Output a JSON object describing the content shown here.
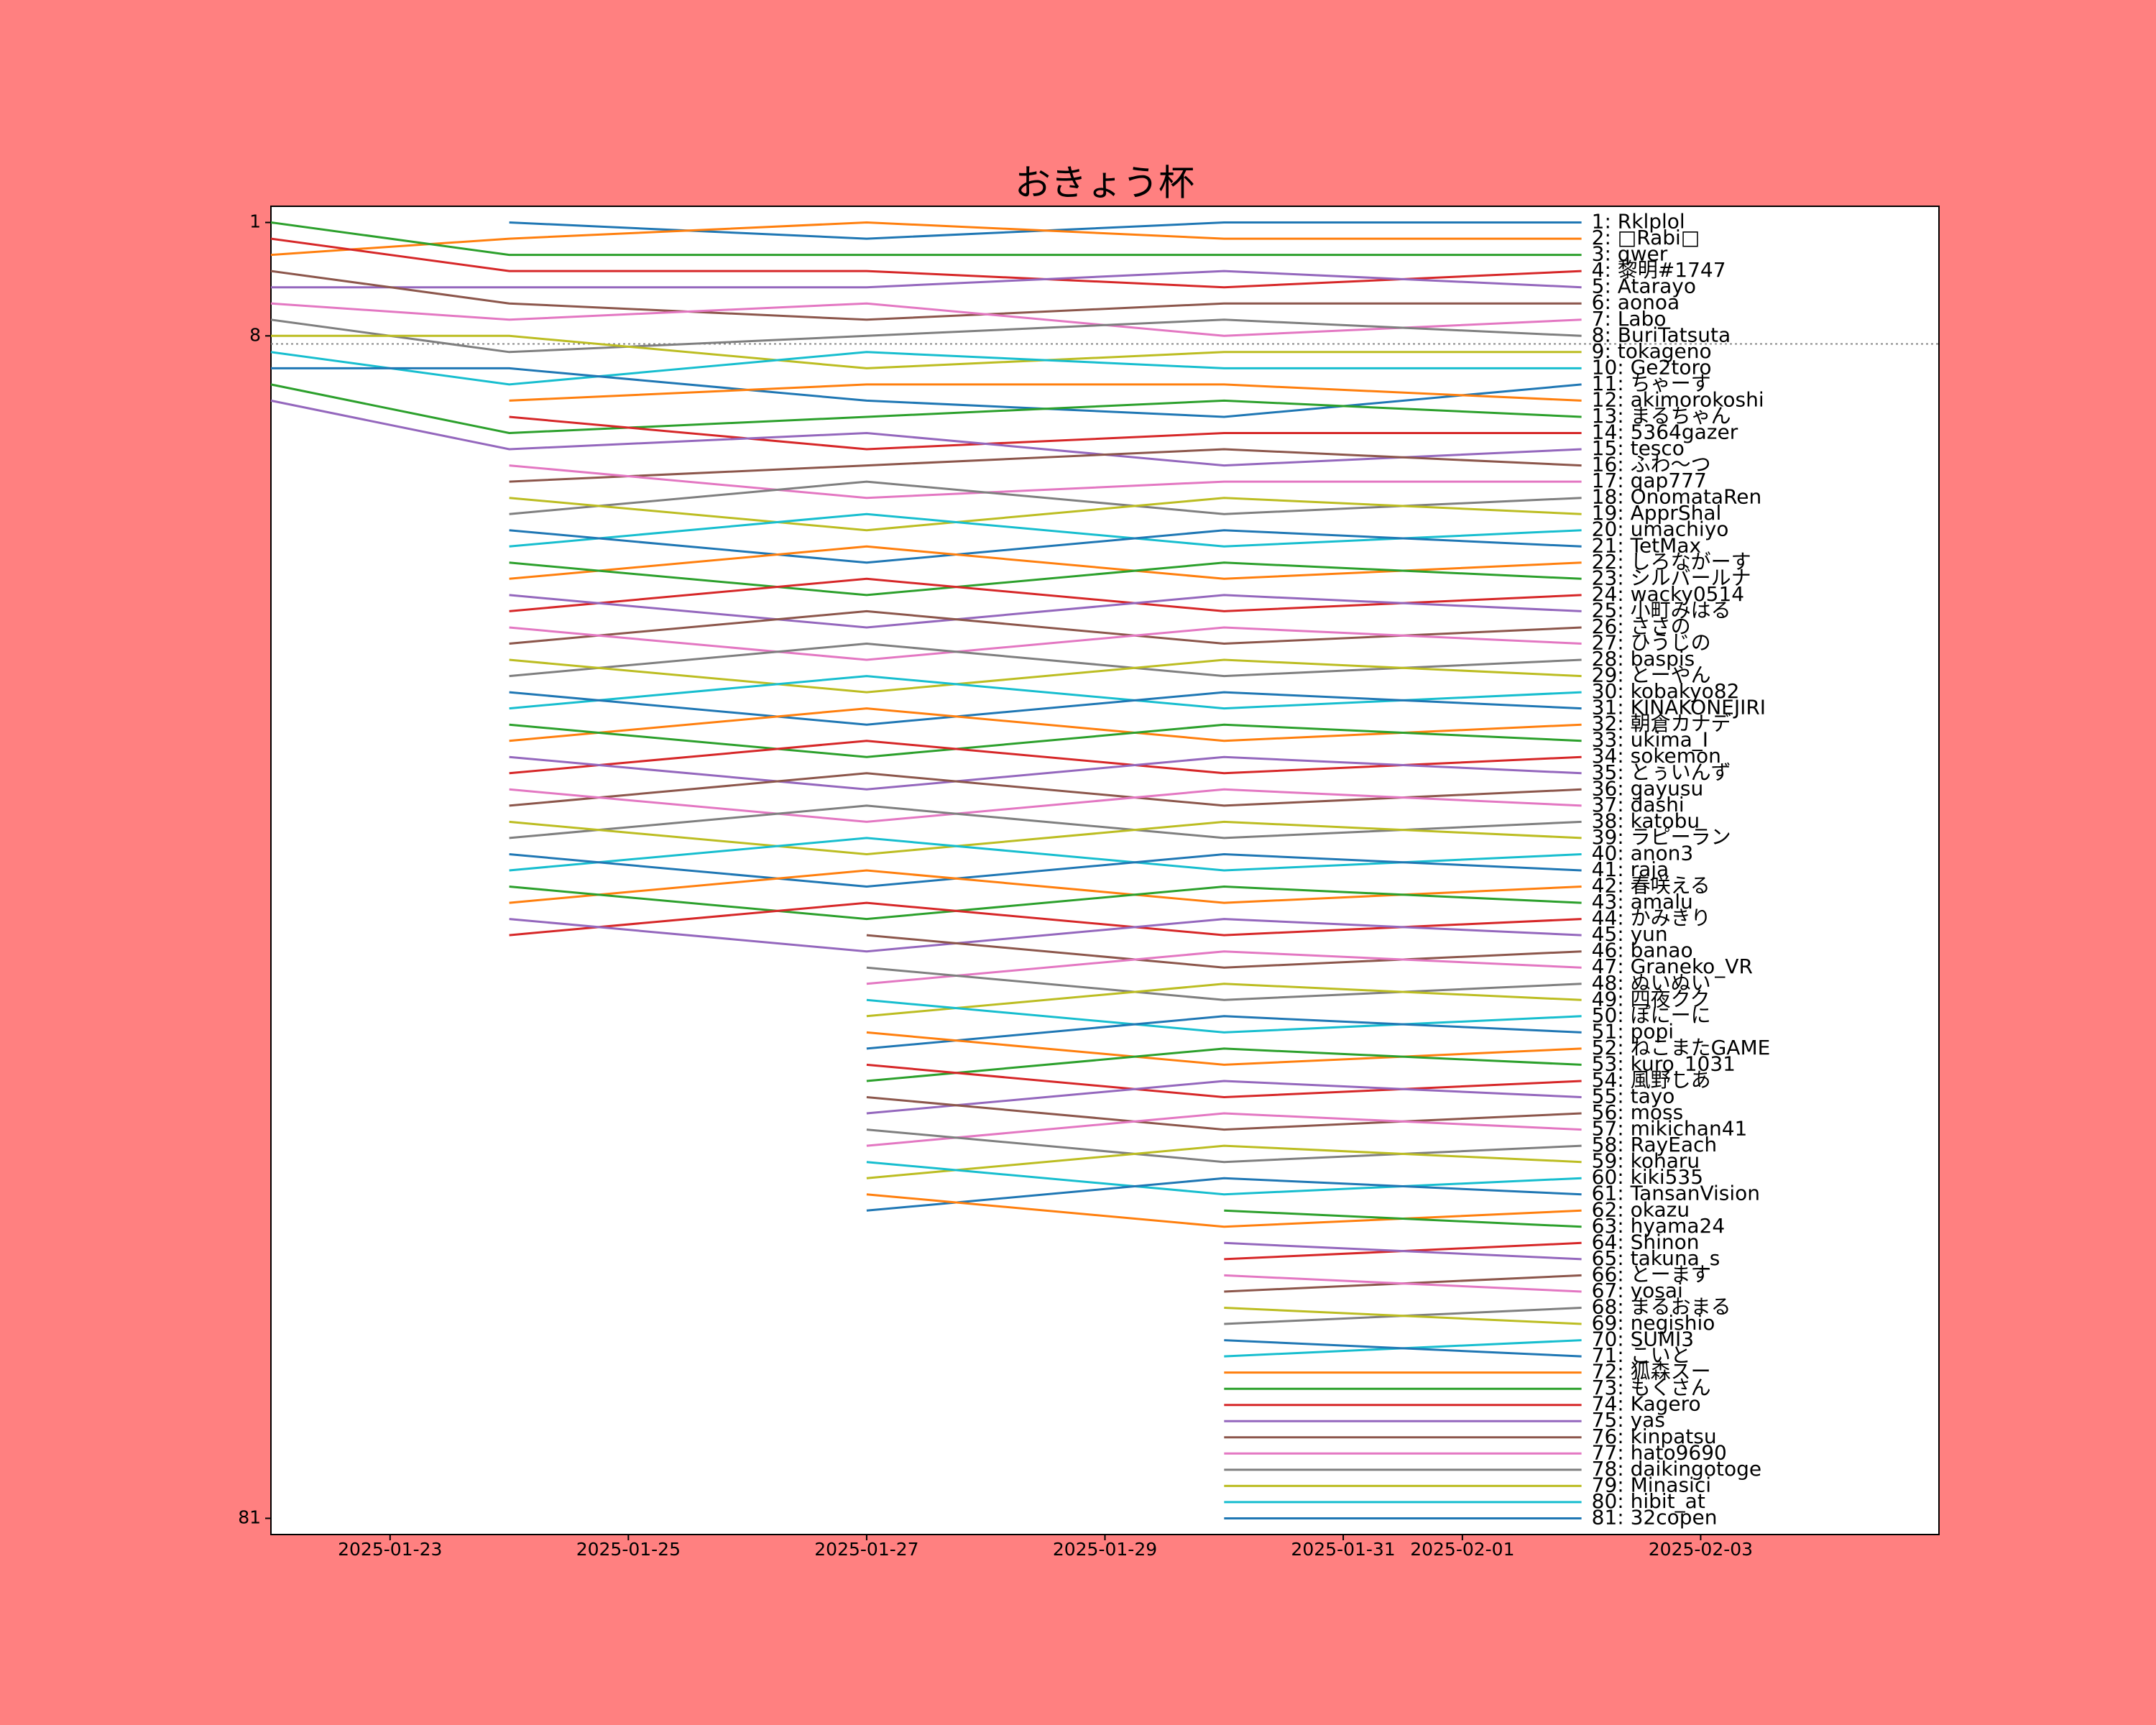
{
  "chart_data": {
    "type": "line",
    "title": "おきょう杯",
    "x": [
      "2025-01-22",
      "2025-01-24",
      "2025-01-27",
      "2025-01-30",
      "2025-02-02"
    ],
    "xlim": [
      "2025-01-22",
      "2025-02-05"
    ],
    "xticks": [
      "2025-01-23",
      "2025-01-25",
      "2025-01-27",
      "2025-01-29",
      "2025-01-31",
      "2025-02-01",
      "2025-02-03"
    ],
    "ylim": [
      82,
      0
    ],
    "yticks": [
      1,
      8,
      81
    ],
    "threshold": 8.5,
    "series": [
      {
        "name": "1: Rklplol",
        "color": "#1f77b4",
        "values": [
          null,
          1,
          2,
          1,
          1
        ]
      },
      {
        "name": "2: □Rabi□",
        "color": "#ff7f0e",
        "values": [
          3,
          2,
          1,
          2,
          2
        ]
      },
      {
        "name": "3: qwer",
        "color": "#2ca02c",
        "values": [
          1,
          3,
          3,
          3,
          3
        ]
      },
      {
        "name": "4: 黎明#1747",
        "color": "#d62728",
        "values": [
          2,
          4,
          4,
          5,
          4
        ]
      },
      {
        "name": "5: Atarayo",
        "color": "#9467bd",
        "values": [
          5,
          5,
          5,
          4,
          5
        ]
      },
      {
        "name": "6: aonoa",
        "color": "#8c564b",
        "values": [
          4,
          6,
          7,
          6,
          6
        ]
      },
      {
        "name": "7: Labo",
        "color": "#e377c2",
        "values": [
          6,
          7,
          6,
          8,
          7
        ]
      },
      {
        "name": "8: BuriTatsuta",
        "color": "#7f7f7f",
        "values": [
          7,
          9,
          8,
          7,
          8
        ]
      },
      {
        "name": "9: tokageno",
        "color": "#bcbd22",
        "values": [
          8,
          8,
          10,
          9,
          9
        ]
      },
      {
        "name": "10: Ge2toro",
        "color": "#17becf",
        "values": [
          9,
          11,
          9,
          10,
          10
        ]
      },
      {
        "name": "11: ちゃーす",
        "color": "#1f77b4",
        "values": [
          10,
          10,
          12,
          13,
          11
        ]
      },
      {
        "name": "12: akimorokoshi",
        "color": "#ff7f0e",
        "values": [
          null,
          12,
          11,
          11,
          12
        ]
      },
      {
        "name": "13: まるちゃん",
        "color": "#2ca02c",
        "values": [
          11,
          14,
          13,
          12,
          13
        ]
      },
      {
        "name": "14: 5364gazer",
        "color": "#d62728",
        "values": [
          null,
          13,
          15,
          14,
          14
        ]
      },
      {
        "name": "15: tesco",
        "color": "#9467bd",
        "values": [
          12,
          15,
          14,
          16,
          15
        ]
      },
      {
        "name": "16: ふわ〜つ",
        "color": "#8c564b",
        "values": [
          null,
          17,
          16,
          15,
          16
        ]
      },
      {
        "name": "17: qap777",
        "color": "#e377c2",
        "values": [
          null,
          16,
          18,
          17,
          17
        ]
      },
      {
        "name": "18: OnomataRen",
        "color": "#7f7f7f",
        "values": [
          null,
          19,
          17,
          19,
          18
        ]
      },
      {
        "name": "19: ApprShal",
        "color": "#bcbd22",
        "values": [
          null,
          18,
          20,
          18,
          19
        ]
      },
      {
        "name": "20: umachiyo",
        "color": "#17becf",
        "values": [
          null,
          21,
          19,
          21,
          20
        ]
      },
      {
        "name": "21: TetMax",
        "color": "#1f77b4",
        "values": [
          null,
          20,
          22,
          20,
          21
        ]
      },
      {
        "name": "22: しろながーす",
        "color": "#ff7f0e",
        "values": [
          null,
          23,
          21,
          23,
          22
        ]
      },
      {
        "name": "23: シルバールナ",
        "color": "#2ca02c",
        "values": [
          null,
          22,
          24,
          22,
          23
        ]
      },
      {
        "name": "24: wacky0514",
        "color": "#d62728",
        "values": [
          null,
          25,
          23,
          25,
          24
        ]
      },
      {
        "name": "25: 小町みはる",
        "color": "#9467bd",
        "values": [
          null,
          24,
          26,
          24,
          25
        ]
      },
      {
        "name": "26: ささの",
        "color": "#8c564b",
        "values": [
          null,
          27,
          25,
          27,
          26
        ]
      },
      {
        "name": "27: ひうじの",
        "color": "#e377c2",
        "values": [
          null,
          26,
          28,
          26,
          27
        ]
      },
      {
        "name": "28: baspis",
        "color": "#7f7f7f",
        "values": [
          null,
          29,
          27,
          29,
          28
        ]
      },
      {
        "name": "29: とーやん",
        "color": "#bcbd22",
        "values": [
          null,
          28,
          30,
          28,
          29
        ]
      },
      {
        "name": "30: kobakyo82",
        "color": "#17becf",
        "values": [
          null,
          31,
          29,
          31,
          30
        ]
      },
      {
        "name": "31: KINAKONEJIRI",
        "color": "#1f77b4",
        "values": [
          null,
          30,
          32,
          30,
          31
        ]
      },
      {
        "name": "32: 朝倉カナデ",
        "color": "#ff7f0e",
        "values": [
          null,
          33,
          31,
          33,
          32
        ]
      },
      {
        "name": "33: ukima_I",
        "color": "#2ca02c",
        "values": [
          null,
          32,
          34,
          32,
          33
        ]
      },
      {
        "name": "34: sokemon",
        "color": "#d62728",
        "values": [
          null,
          35,
          33,
          35,
          34
        ]
      },
      {
        "name": "35: とぅいんず",
        "color": "#9467bd",
        "values": [
          null,
          34,
          36,
          34,
          35
        ]
      },
      {
        "name": "36: gayusu",
        "color": "#8c564b",
        "values": [
          null,
          37,
          35,
          37,
          36
        ]
      },
      {
        "name": "37: dashi",
        "color": "#e377c2",
        "values": [
          null,
          36,
          38,
          36,
          37
        ]
      },
      {
        "name": "38: katobu",
        "color": "#7f7f7f",
        "values": [
          null,
          39,
          37,
          39,
          38
        ]
      },
      {
        "name": "39: ラピーラン",
        "color": "#bcbd22",
        "values": [
          null,
          38,
          40,
          38,
          39
        ]
      },
      {
        "name": "40: anon3",
        "color": "#17becf",
        "values": [
          null,
          41,
          39,
          41,
          40
        ]
      },
      {
        "name": "41: raja",
        "color": "#1f77b4",
        "values": [
          null,
          40,
          42,
          40,
          41
        ]
      },
      {
        "name": "42: 春咲える",
        "color": "#ff7f0e",
        "values": [
          null,
          43,
          41,
          43,
          42
        ]
      },
      {
        "name": "43: amalu",
        "color": "#2ca02c",
        "values": [
          null,
          42,
          44,
          42,
          43
        ]
      },
      {
        "name": "44: かみきり",
        "color": "#d62728",
        "values": [
          null,
          45,
          43,
          45,
          44
        ]
      },
      {
        "name": "45: yun",
        "color": "#9467bd",
        "values": [
          null,
          44,
          46,
          44,
          45
        ]
      },
      {
        "name": "46: banao",
        "color": "#8c564b",
        "values": [
          null,
          null,
          45,
          47,
          46
        ]
      },
      {
        "name": "47: Graneko_VR",
        "color": "#e377c2",
        "values": [
          null,
          null,
          48,
          46,
          47
        ]
      },
      {
        "name": "48: ぬいぬい",
        "color": "#7f7f7f",
        "values": [
          null,
          null,
          47,
          49,
          48
        ]
      },
      {
        "name": "49: 四夜クク",
        "color": "#bcbd22",
        "values": [
          null,
          null,
          50,
          48,
          49
        ]
      },
      {
        "name": "50: ぽにーに",
        "color": "#17becf",
        "values": [
          null,
          null,
          49,
          51,
          50
        ]
      },
      {
        "name": "51: popi",
        "color": "#1f77b4",
        "values": [
          null,
          null,
          52,
          50,
          51
        ]
      },
      {
        "name": "52: ねこまたGAME",
        "color": "#ff7f0e",
        "values": [
          null,
          null,
          51,
          53,
          52
        ]
      },
      {
        "name": "53: kuro_1031",
        "color": "#2ca02c",
        "values": [
          null,
          null,
          54,
          52,
          53
        ]
      },
      {
        "name": "54: 風野しあ",
        "color": "#d62728",
        "values": [
          null,
          null,
          53,
          55,
          54
        ]
      },
      {
        "name": "55: tayo",
        "color": "#9467bd",
        "values": [
          null,
          null,
          56,
          54,
          55
        ]
      },
      {
        "name": "56: moss",
        "color": "#8c564b",
        "values": [
          null,
          null,
          55,
          57,
          56
        ]
      },
      {
        "name": "57: mikichan41",
        "color": "#e377c2",
        "values": [
          null,
          null,
          58,
          56,
          57
        ]
      },
      {
        "name": "58: RayEach",
        "color": "#7f7f7f",
        "values": [
          null,
          null,
          57,
          59,
          58
        ]
      },
      {
        "name": "59: koharu",
        "color": "#bcbd22",
        "values": [
          null,
          null,
          60,
          58,
          59
        ]
      },
      {
        "name": "60: kiki535",
        "color": "#17becf",
        "values": [
          null,
          null,
          59,
          61,
          60
        ]
      },
      {
        "name": "61: TansanVision",
        "color": "#1f77b4",
        "values": [
          null,
          null,
          62,
          60,
          61
        ]
      },
      {
        "name": "62: okazu",
        "color": "#ff7f0e",
        "values": [
          null,
          null,
          61,
          63,
          62
        ]
      },
      {
        "name": "63: hyama24",
        "color": "#2ca02c",
        "values": [
          null,
          null,
          null,
          62,
          63
        ]
      },
      {
        "name": "64: Shinon",
        "color": "#d62728",
        "values": [
          null,
          null,
          null,
          65,
          64
        ]
      },
      {
        "name": "65: takuna_s",
        "color": "#9467bd",
        "values": [
          null,
          null,
          null,
          64,
          65
        ]
      },
      {
        "name": "66: とーます",
        "color": "#8c564b",
        "values": [
          null,
          null,
          null,
          67,
          66
        ]
      },
      {
        "name": "67: yosai",
        "color": "#e377c2",
        "values": [
          null,
          null,
          null,
          66,
          67
        ]
      },
      {
        "name": "68: まるおまる",
        "color": "#7f7f7f",
        "values": [
          null,
          null,
          null,
          69,
          68
        ]
      },
      {
        "name": "69: negishio",
        "color": "#bcbd22",
        "values": [
          null,
          null,
          null,
          68,
          69
        ]
      },
      {
        "name": "70: SUMI3",
        "color": "#17becf",
        "values": [
          null,
          null,
          null,
          71,
          70
        ]
      },
      {
        "name": "71: こいと",
        "color": "#1f77b4",
        "values": [
          null,
          null,
          null,
          70,
          71
        ]
      },
      {
        "name": "72: 狐森スー",
        "color": "#ff7f0e",
        "values": [
          null,
          null,
          null,
          72,
          72
        ]
      },
      {
        "name": "73: もくさん",
        "color": "#2ca02c",
        "values": [
          null,
          null,
          null,
          73,
          73
        ]
      },
      {
        "name": "74: Kagero",
        "color": "#d62728",
        "values": [
          null,
          null,
          null,
          74,
          74
        ]
      },
      {
        "name": "75: yas",
        "color": "#9467bd",
        "values": [
          null,
          null,
          null,
          75,
          75
        ]
      },
      {
        "name": "76: kinpatsu",
        "color": "#8c564b",
        "values": [
          null,
          null,
          null,
          76,
          76
        ]
      },
      {
        "name": "77: hato9690",
        "color": "#e377c2",
        "values": [
          null,
          null,
          null,
          77,
          77
        ]
      },
      {
        "name": "78: daikingotoge",
        "color": "#7f7f7f",
        "values": [
          null,
          null,
          null,
          78,
          78
        ]
      },
      {
        "name": "79: Minasici",
        "color": "#bcbd22",
        "values": [
          null,
          null,
          null,
          79,
          79
        ]
      },
      {
        "name": "80: hibit_at",
        "color": "#17becf",
        "values": [
          null,
          null,
          null,
          80,
          80
        ]
      },
      {
        "name": "81: 32copen",
        "color": "#1f77b4",
        "values": [
          null,
          null,
          null,
          81,
          81
        ]
      }
    ]
  }
}
